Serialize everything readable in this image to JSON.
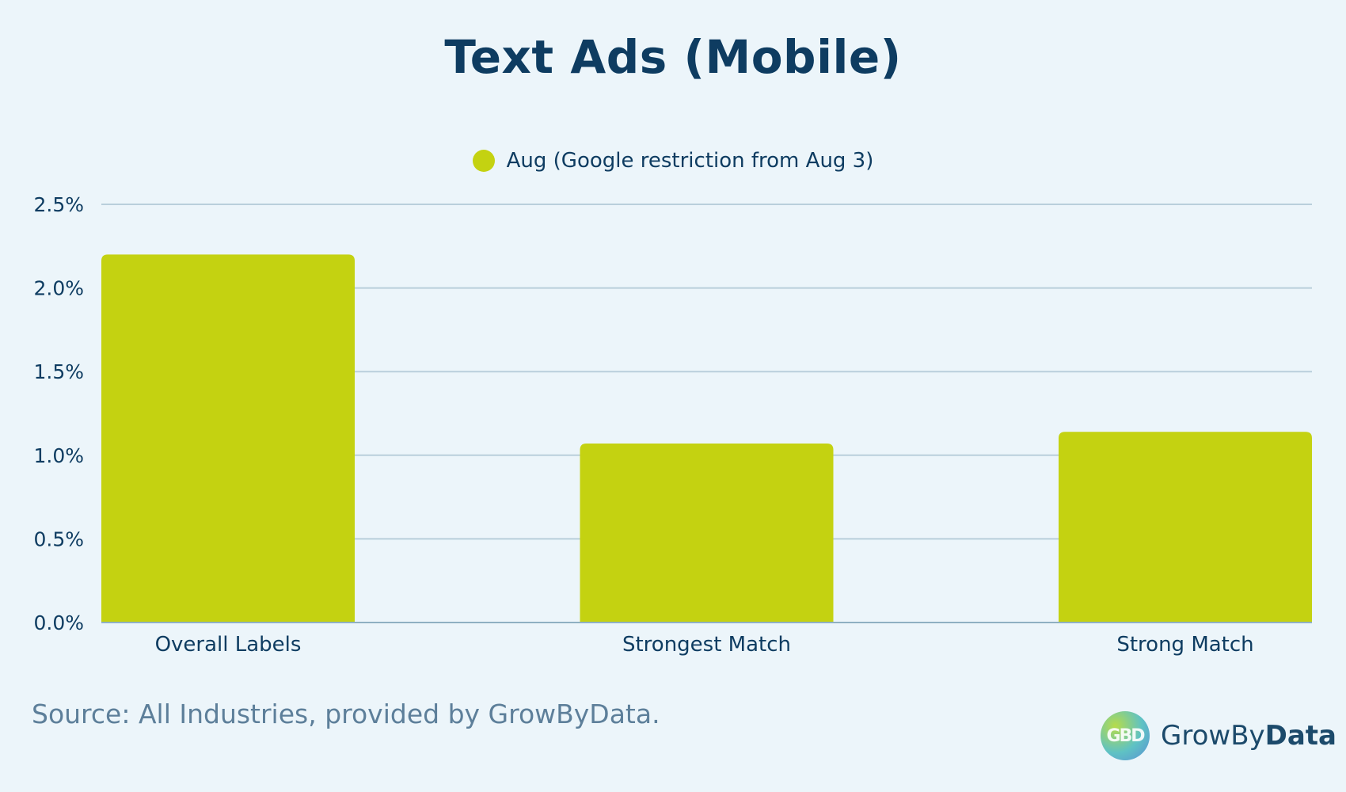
{
  "chart_data": {
    "type": "bar",
    "title": "Text Ads (Mobile)",
    "categories": [
      "Overall Labels",
      "Strongest Match",
      "Strong Match"
    ],
    "series": [
      {
        "name": "Aug (Google restriction from Aug 3)",
        "values": [
          2.2,
          1.07,
          1.14
        ]
      }
    ],
    "ylim": [
      0,
      2.5
    ],
    "yticks": [
      "0.0%",
      "0.5%",
      "1.0%",
      "1.5%",
      "2.0%",
      "2.5%"
    ],
    "ytick_values": [
      0,
      0.5,
      1.0,
      1.5,
      2.0,
      2.5
    ],
    "xlabel": "",
    "ylabel": "",
    "grid": true,
    "legend_position": "top-center",
    "bar_color": "#c4d211",
    "grid_color": "#b9cfdb",
    "tick_color": "#0e3c61"
  },
  "footer": {
    "source": "Source: All Industries, provided by GrowByData.",
    "logo_mark": "GBD",
    "logo_name_regular": "GrowBy",
    "logo_name_bold": "Data"
  }
}
